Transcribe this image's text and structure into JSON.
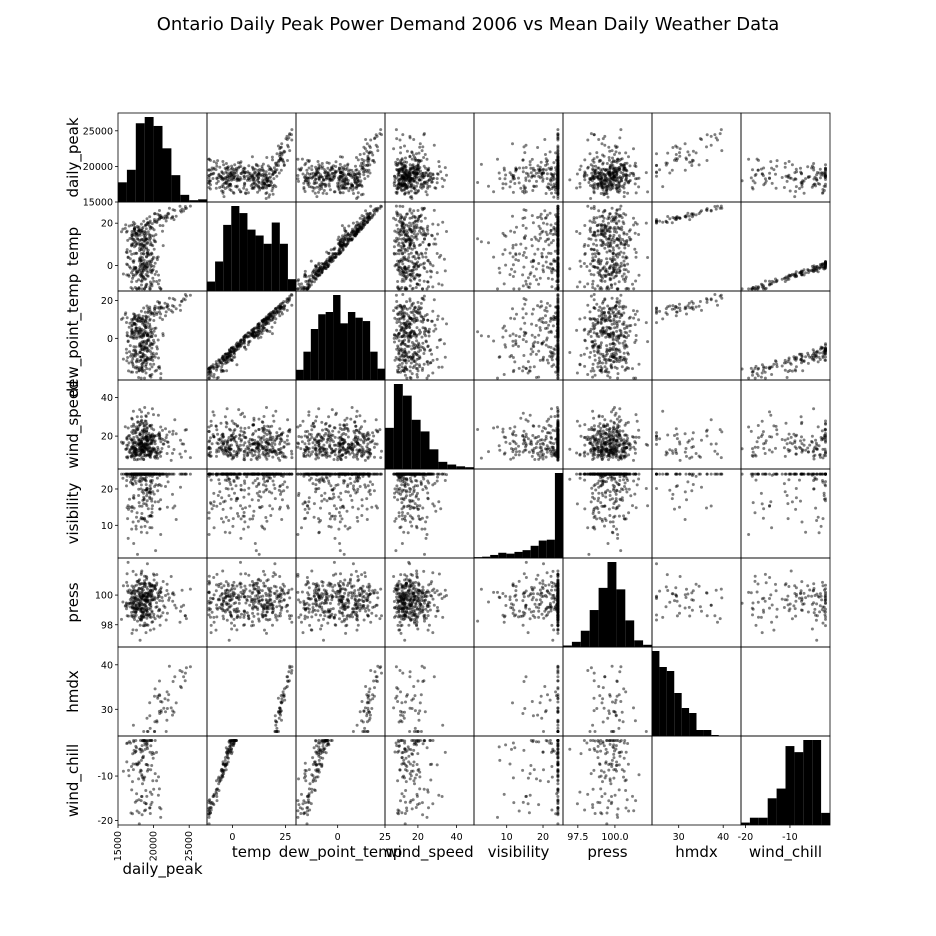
{
  "chart_data": {
    "type": "scatter",
    "title": "Ontario Daily Peak Power Demand 2006 vs Mean Daily Weather Data",
    "variables": [
      "daily_peak",
      "temp",
      "dew_point_temp",
      "wind_speed",
      "visibility",
      "press",
      "hmdx",
      "wind_chill"
    ],
    "ranges": [
      [
        15000,
        27500
      ],
      [
        -12,
        30
      ],
      [
        -22,
        25
      ],
      [
        3,
        49
      ],
      [
        1,
        25.5
      ],
      [
        96.5,
        102.5
      ],
      [
        24,
        44
      ],
      [
        -21,
        -1
      ]
    ],
    "ticks": [
      [
        15000,
        20000,
        25000
      ],
      [
        0,
        25
      ],
      [
        0,
        25
      ],
      [
        20,
        40
      ],
      [
        10,
        20
      ],
      [
        97.5,
        100.0
      ],
      [
        30,
        40
      ],
      [
        -20,
        -10
      ]
    ],
    "y_ticks": [
      [
        15000,
        20000,
        25000
      ],
      [
        0,
        20
      ],
      [
        0,
        20
      ],
      [
        20,
        40
      ],
      [
        10,
        20
      ],
      [
        98,
        100
      ],
      [
        30,
        40
      ],
      [
        -20,
        -10
      ]
    ],
    "tick_labels": [
      [
        "15000",
        "20000",
        "25000"
      ],
      [
        "0",
        "25"
      ],
      [
        "0",
        "25"
      ],
      [
        "20",
        "40"
      ],
      [
        "10",
        "20"
      ],
      [
        "97.5",
        "100.0"
      ],
      [
        "30",
        "40"
      ],
      [
        "-20",
        "-10"
      ]
    ],
    "y_tick_labels": [
      [
        "15000",
        "20000",
        "25000"
      ],
      [
        "0",
        "20"
      ],
      [
        "0",
        "20"
      ],
      [
        "20",
        "40"
      ],
      [
        "10",
        "20"
      ],
      [
        "98",
        "100"
      ],
      [
        "30",
        "40"
      ],
      [
        "-20",
        "-10"
      ]
    ],
    "histograms": [
      {
        "variable": "daily_peak",
        "counts": [
          22,
          36,
          88,
          95,
          85,
          60,
          30,
          8,
          2,
          3
        ]
      },
      {
        "variable": "temp",
        "counts": [
          8,
          25,
          56,
          72,
          66,
          52,
          47,
          40,
          58,
          40,
          10
        ]
      },
      {
        "variable": "dew_point_temp",
        "counts": [
          9,
          25,
          45,
          58,
          60,
          75,
          50,
          60,
          55,
          52,
          25,
          10
        ]
      },
      {
        "variable": "wind_speed",
        "counts": [
          46,
          95,
          82,
          55,
          42,
          22,
          8,
          5,
          3,
          2
        ]
      },
      {
        "variable": "visibility",
        "counts": [
          2,
          3,
          7,
          12,
          10,
          14,
          18,
          28,
          40,
          42,
          195
        ]
      },
      {
        "variable": "press",
        "counts": [
          2,
          7,
          22,
          50,
          80,
          115,
          78,
          36,
          9,
          3
        ]
      },
      {
        "variable": "hmdx",
        "counts": [
          85,
          69,
          65,
          43,
          28,
          23,
          6,
          6,
          1,
          0,
          0,
          0
        ]
      },
      {
        "variable": "wind_chill",
        "counts": [
          2,
          6,
          6,
          22,
          30,
          65,
          60,
          70,
          70,
          10
        ]
      }
    ],
    "point_color": "#000000",
    "point_opacity": 0.5,
    "bar_color": "#000000",
    "grid": false
  }
}
